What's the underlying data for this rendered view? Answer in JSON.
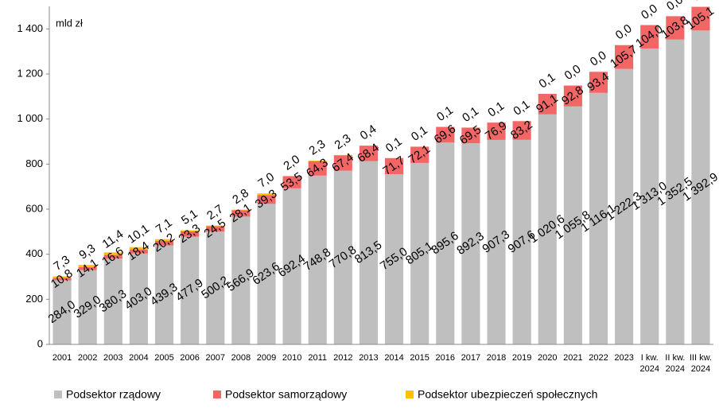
{
  "chart_data": {
    "type": "bar",
    "stacked": true,
    "annotation": "mld zł",
    "categories": [
      "2001",
      "2002",
      "2003",
      "2004",
      "2005",
      "2006",
      "2007",
      "2008",
      "2009",
      "2010",
      "2011",
      "2012",
      "2013",
      "2014",
      "2015",
      "2016",
      "2017",
      "2018",
      "2019",
      "2020",
      "2021",
      "2022",
      "2023",
      "I kw.\n2024",
      "II kw.\n2024",
      "III kw.\n2024"
    ],
    "series": [
      {
        "name": "Podsektor rządowy",
        "color": "#bfbfbf",
        "values": [
          284.0,
          329.0,
          380.3,
          403.0,
          439.3,
          477.9,
          500.2,
          566.9,
          623.6,
          692.4,
          748.8,
          770.8,
          813.5,
          755.0,
          805.1,
          895.6,
          892.3,
          907.3,
          907.6,
          1020.6,
          1055.8,
          1116.1,
          1222.3,
          1313.0,
          1352.5,
          1392.9
        ],
        "value_labels": [
          "284,0",
          "329,0",
          "380,3",
          "403,0",
          "439,3",
          "477,9",
          "500,2",
          "566,9",
          "623,6",
          "692,4",
          "748,8",
          "770,8",
          "813,5",
          "755,0",
          "805,1",
          "895,6",
          "892,3",
          "907,3",
          "907,6",
          "1 020,6",
          "1 055,8",
          "1 116,1",
          "1 222,3",
          "1 313,0",
          "1 352,5",
          "1 392,9"
        ]
      },
      {
        "name": "Podsektor samorządowy",
        "color": "#f26666",
        "values": [
          10.8,
          14.1,
          16.6,
          18.4,
          20.2,
          23.3,
          24.5,
          28.1,
          39.3,
          53.5,
          64.3,
          67.4,
          68.4,
          71.7,
          72.1,
          69.6,
          69.5,
          76.9,
          83.2,
          91.1,
          92.8,
          93.4,
          105.7,
          104.0,
          103.8,
          105.1
        ],
        "value_labels": [
          "10,8",
          "14,1",
          "16,6",
          "18,4",
          "20,2",
          "23,3",
          "24,5",
          "28,1",
          "39,3",
          "53,5",
          "64,3",
          "67,4",
          "68,4",
          "71,7",
          "72,1",
          "69,6",
          "69,5",
          "76,9",
          "83,2",
          "91,1",
          "92,8",
          "93,4",
          "105,7",
          "104,0",
          "103,8",
          "105,1"
        ]
      },
      {
        "name": "Podsektor ubezpieczeń społecznych",
        "color": "#ffc000",
        "values": [
          7.3,
          9.3,
          11.4,
          10.1,
          7.1,
          5.1,
          2.7,
          2.8,
          7.0,
          2.0,
          2.3,
          2.3,
          0.4,
          0.1,
          0.1,
          0.1,
          0.1,
          0.1,
          0.1,
          0.1,
          0.0,
          0.0,
          0.0,
          0.0,
          0.0,
          0.0
        ],
        "value_labels": [
          "7,3",
          "9,3",
          "11,4",
          "10,1",
          "7,1",
          "5,1",
          "2,7",
          "2,8",
          "7,0",
          "2,0",
          "2,3",
          "2,3",
          "0,4",
          "0,1",
          "0,1",
          "0,1",
          "0,1",
          "0,1",
          "0,1",
          "0,1",
          "0,0",
          "0,0",
          "0,0",
          "0,0",
          "0,0",
          "0,0"
        ]
      }
    ],
    "ylim": [
      0,
      1500
    ],
    "yticks": [
      0,
      200,
      400,
      600,
      800,
      {
        "value": 1000,
        "label": "1 000"
      },
      {
        "value": 1200,
        "label": "1 200"
      },
      {
        "value": 1400,
        "label": "1 400"
      }
    ],
    "grid": false,
    "legend": "bottom"
  }
}
